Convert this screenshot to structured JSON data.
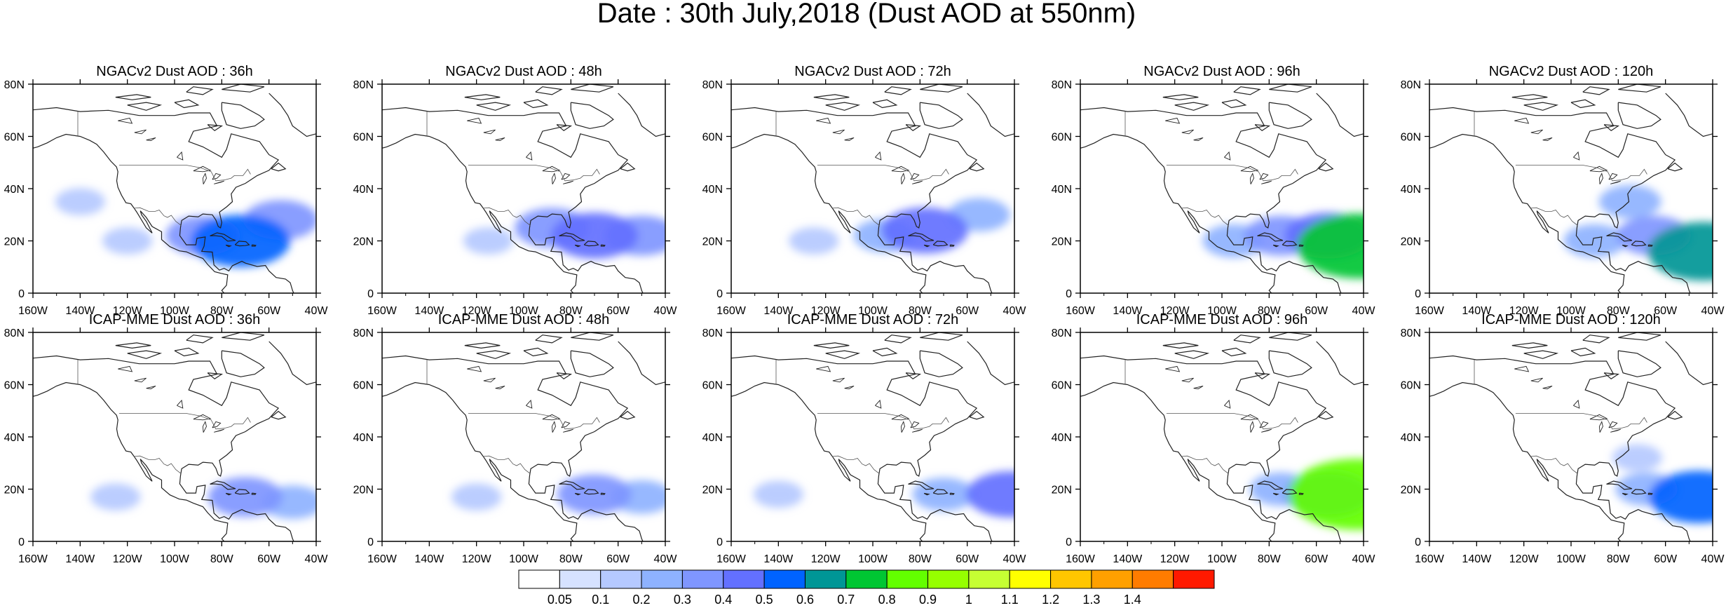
{
  "figure": {
    "title": "Date : 30th July,2018 (Dust AOD at 550nm)"
  },
  "axes": {
    "lon_ticks": [
      "160W",
      "140W",
      "120W",
      "100W",
      "80W",
      "60W",
      "40W"
    ],
    "lat_ticks": [
      "80N",
      "60N",
      "40N",
      "20N",
      "0"
    ],
    "lon_range": [
      -160,
      -40
    ],
    "lat_range": [
      0,
      80
    ]
  },
  "panels": [
    {
      "title": "NGACv2 Dust AOD : 36h",
      "model": "NGACv2",
      "lead": "36h"
    },
    {
      "title": "NGACv2 Dust AOD : 48h",
      "model": "NGACv2",
      "lead": "48h"
    },
    {
      "title": "NGACv2 Dust AOD : 72h",
      "model": "NGACv2",
      "lead": "72h"
    },
    {
      "title": "NGACv2 Dust AOD : 96h",
      "model": "NGACv2",
      "lead": "96h"
    },
    {
      "title": "NGACv2 Dust AOD : 120h",
      "model": "NGACv2",
      "lead": "120h"
    },
    {
      "title": "ICAP-MME Dust AOD : 36h",
      "model": "ICAP-MME",
      "lead": "36h"
    },
    {
      "title": "ICAP-MME Dust AOD : 48h",
      "model": "ICAP-MME",
      "lead": "48h"
    },
    {
      "title": "ICAP-MME Dust AOD : 72h",
      "model": "ICAP-MME",
      "lead": "72h"
    },
    {
      "title": "ICAP-MME Dust AOD : 96h",
      "model": "ICAP-MME",
      "lead": "96h"
    },
    {
      "title": "ICAP-MME Dust AOD : 120h",
      "model": "ICAP-MME",
      "lead": "120h"
    }
  ],
  "colorbar": {
    "labels": [
      "0.05",
      "0.1",
      "0.2",
      "0.3",
      "0.4",
      "0.5",
      "0.6",
      "0.7",
      "0.8",
      "0.9",
      "1",
      "1.1",
      "1.2",
      "1.3",
      "1.4"
    ],
    "colors": [
      "#ffffff",
      "#d6e2ff",
      "#b5c9ff",
      "#8eb2ff",
      "#7f96ff",
      "#6370ff",
      "#0063ff",
      "#009696",
      "#00c633",
      "#63ff00",
      "#96ff00",
      "#c6ff33",
      "#ffff00",
      "#ffc600",
      "#ffa000",
      "#ff7c00",
      "#ff1900"
    ]
  },
  "map_colors": {
    "coast": "#222222",
    "border": "#555555"
  },
  "chart_data": [
    {
      "type": "heatmap",
      "title": "NGACv2 Dust AOD : 36h",
      "xlabel": "",
      "ylabel": "",
      "xlim": [
        -160,
        -40
      ],
      "ylim": [
        0,
        80
      ],
      "plumes": [
        {
          "lon": -72,
          "lat": 20,
          "aod": 0.5
        },
        {
          "lon": -88,
          "lat": 22,
          "aod": 0.3
        },
        {
          "lon": -55,
          "lat": 28,
          "aod": 0.3
        },
        {
          "lon": -120,
          "lat": 20,
          "aod": 0.1
        },
        {
          "lon": -140,
          "lat": 35,
          "aod": 0.1
        }
      ]
    },
    {
      "type": "heatmap",
      "title": "NGACv2 Dust AOD : 48h",
      "xlabel": "",
      "ylabel": "",
      "xlim": [
        -160,
        -40
      ],
      "ylim": [
        0,
        80
      ],
      "plumes": [
        {
          "lon": -70,
          "lat": 22,
          "aod": 0.4
        },
        {
          "lon": -88,
          "lat": 25,
          "aod": 0.3
        },
        {
          "lon": -115,
          "lat": 20,
          "aod": 0.1
        },
        {
          "lon": -50,
          "lat": 22,
          "aod": 0.3
        }
      ]
    },
    {
      "type": "heatmap",
      "title": "NGACv2 Dust AOD : 72h",
      "xlabel": "",
      "ylabel": "",
      "xlim": [
        -160,
        -40
      ],
      "ylim": [
        0,
        80
      ],
      "plumes": [
        {
          "lon": -78,
          "lat": 24,
          "aod": 0.4
        },
        {
          "lon": -95,
          "lat": 22,
          "aod": 0.2
        },
        {
          "lon": -125,
          "lat": 20,
          "aod": 0.1
        },
        {
          "lon": -55,
          "lat": 30,
          "aod": 0.2
        }
      ]
    },
    {
      "type": "heatmap",
      "title": "NGACv2 Dust AOD : 96h",
      "xlabel": "",
      "ylabel": "",
      "xlim": [
        -160,
        -40
      ],
      "ylim": [
        0,
        80
      ],
      "plumes": [
        {
          "lon": -42,
          "lat": 18,
          "aod": 0.7
        },
        {
          "lon": -55,
          "lat": 22,
          "aod": 0.4
        },
        {
          "lon": -75,
          "lat": 22,
          "aod": 0.3
        },
        {
          "lon": -95,
          "lat": 20,
          "aod": 0.2
        }
      ]
    },
    {
      "type": "heatmap",
      "title": "NGACv2 Dust AOD : 120h",
      "xlabel": "",
      "ylabel": "",
      "xlim": [
        -160,
        -40
      ],
      "ylim": [
        0,
        80
      ],
      "plumes": [
        {
          "lon": -44,
          "lat": 16,
          "aod": 0.6
        },
        {
          "lon": -65,
          "lat": 22,
          "aod": 0.3
        },
        {
          "lon": -75,
          "lat": 35,
          "aod": 0.2
        },
        {
          "lon": -90,
          "lat": 20,
          "aod": 0.2
        }
      ]
    },
    {
      "type": "heatmap",
      "title": "ICAP-MME Dust AOD : 36h",
      "xlabel": "",
      "ylabel": "",
      "xlim": [
        -160,
        -40
      ],
      "ylim": [
        0,
        80
      ],
      "plumes": [
        {
          "lon": -70,
          "lat": 17,
          "aod": 0.3
        },
        {
          "lon": -50,
          "lat": 15,
          "aod": 0.2
        },
        {
          "lon": -125,
          "lat": 17,
          "aod": 0.1
        }
      ]
    },
    {
      "type": "heatmap",
      "title": "ICAP-MME Dust AOD : 48h",
      "xlabel": "",
      "ylabel": "",
      "xlim": [
        -160,
        -40
      ],
      "ylim": [
        0,
        80
      ],
      "plumes": [
        {
          "lon": -70,
          "lat": 18,
          "aod": 0.3
        },
        {
          "lon": -50,
          "lat": 17,
          "aod": 0.2
        },
        {
          "lon": -120,
          "lat": 17,
          "aod": 0.1
        }
      ]
    },
    {
      "type": "heatmap",
      "title": "ICAP-MME Dust AOD : 72h",
      "xlabel": "",
      "ylabel": "",
      "xlim": [
        -160,
        -40
      ],
      "ylim": [
        0,
        80
      ],
      "plumes": [
        {
          "lon": -42,
          "lat": 18,
          "aod": 0.4
        },
        {
          "lon": -70,
          "lat": 18,
          "aod": 0.2
        },
        {
          "lon": -140,
          "lat": 18,
          "aod": 0.1
        }
      ]
    },
    {
      "type": "heatmap",
      "title": "ICAP-MME Dust AOD : 96h",
      "xlabel": "",
      "ylabel": "",
      "xlim": [
        -160,
        -40
      ],
      "ylim": [
        0,
        80
      ],
      "plumes": [
        {
          "lon": -43,
          "lat": 18,
          "aod": 0.8
        },
        {
          "lon": -55,
          "lat": 18,
          "aod": 0.4
        },
        {
          "lon": -75,
          "lat": 20,
          "aod": 0.2
        }
      ]
    },
    {
      "type": "heatmap",
      "title": "ICAP-MME Dust AOD : 120h",
      "xlabel": "",
      "ylabel": "",
      "xlim": [
        -160,
        -40
      ],
      "ylim": [
        0,
        80
      ],
      "plumes": [
        {
          "lon": -46,
          "lat": 17,
          "aod": 0.5
        },
        {
          "lon": -68,
          "lat": 20,
          "aod": 0.2
        },
        {
          "lon": -72,
          "lat": 32,
          "aod": 0.1
        }
      ]
    }
  ]
}
